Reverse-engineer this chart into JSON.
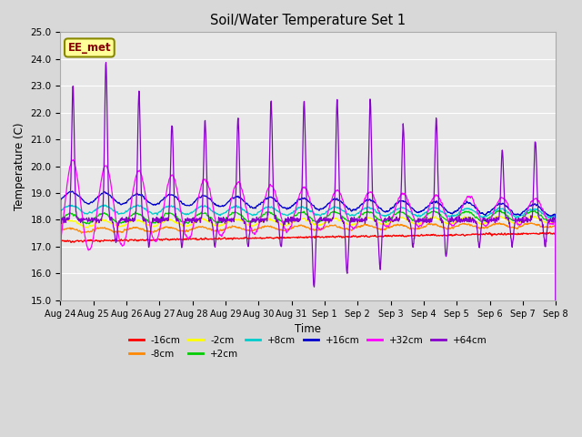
{
  "title": "Soil/Water Temperature Set 1",
  "xlabel": "Time",
  "ylabel": "Temperature (C)",
  "ylim": [
    15.0,
    25.0
  ],
  "yticks": [
    15.0,
    16.0,
    17.0,
    18.0,
    19.0,
    20.0,
    21.0,
    22.0,
    23.0,
    24.0,
    25.0
  ],
  "bg_color": "#d8d8d8",
  "plot_bg_color": "#e8e8e8",
  "grid_color": "#ffffff",
  "series_order": [
    "-16cm",
    "-8cm",
    "-2cm",
    "+2cm",
    "+8cm",
    "+16cm",
    "+32cm",
    "+64cm"
  ],
  "series_colors": {
    "-16cm": "#ff0000",
    "-8cm": "#ff8800",
    "-2cm": "#ffff00",
    "+2cm": "#00cc00",
    "+8cm": "#00cccc",
    "+16cm": "#0000cc",
    "+32cm": "#ff00ff",
    "+64cm": "#8800cc"
  },
  "label_box_text": "EE_met",
  "label_box_facecolor": "#ffff99",
  "label_box_edgecolor": "#888800",
  "xtick_labels": [
    "Aug 24",
    "Aug 25",
    "Aug 26",
    "Aug 27",
    "Aug 28",
    "Aug 29",
    "Aug 30",
    "Aug 31",
    "Sep 1",
    "Sep 2",
    "Sep 3",
    "Sep 4",
    "Sep 5",
    "Sep 6",
    "Sep 7",
    "Sep 8"
  ],
  "xtick_positions": [
    0,
    1,
    2,
    3,
    4,
    5,
    6,
    7,
    8,
    9,
    10,
    11,
    12,
    13,
    14,
    15
  ],
  "n_points": 1500
}
